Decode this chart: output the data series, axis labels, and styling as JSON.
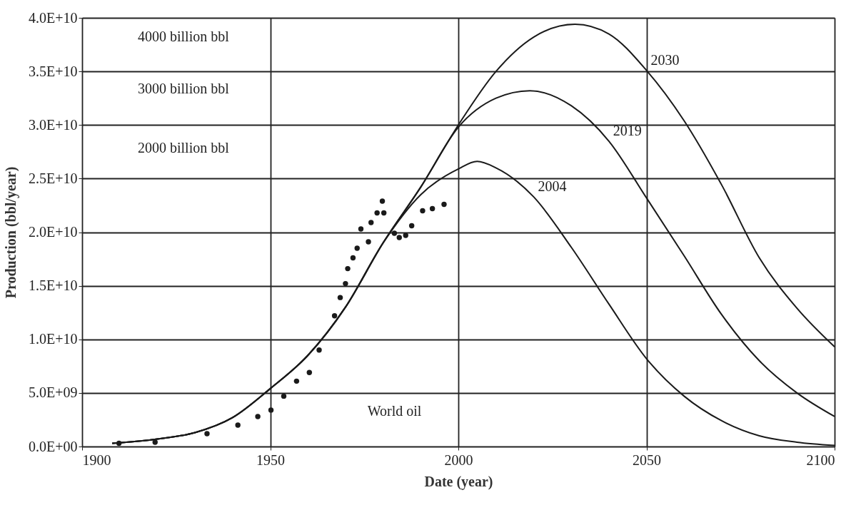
{
  "chart_data": {
    "type": "line",
    "xlabel": "Date (year)",
    "ylabel": "Production (bbl/year)",
    "xlim": [
      1900,
      2100
    ],
    "xticks": [
      1900,
      1950,
      2000,
      2050,
      2100
    ],
    "ylim": [
      0,
      40000000000
    ],
    "yticks": [
      {
        "value": 0,
        "label": "0.0E+00"
      },
      {
        "value": 5000000000,
        "label": "5.0E+09"
      },
      {
        "value": 10000000000,
        "label": "1.0E+10"
      },
      {
        "value": 15000000000,
        "label": "1.5E+10"
      },
      {
        "value": 20000000000,
        "label": "2.0E+10"
      },
      {
        "value": 25000000000,
        "label": "2.5E+10"
      },
      {
        "value": 30000000000,
        "label": "3.0E+10"
      },
      {
        "value": 35000000000,
        "label": "3.5E+10"
      },
      {
        "value": 40000000000,
        "label": "4.0E+10"
      }
    ],
    "grid": true,
    "annotations": [
      "4000 billion bbl",
      "3000 billion bbl",
      "2000 billion bbl",
      "World oil"
    ],
    "series": [
      {
        "name": "2030",
        "color": "#1a1a1a",
        "x": [
          1908,
          1910,
          1920,
          1930,
          1940,
          1950,
          1960,
          1970,
          1980,
          1990,
          2000,
          2010,
          2020,
          2031,
          2040,
          2050,
          2060,
          2070,
          2080,
          2090,
          2100
        ],
        "values": [
          300000000,
          350000000,
          700000000,
          1300000000,
          2700000000,
          5400000000,
          8500000000,
          13000000000,
          19000000000,
          24200000000,
          30000000000,
          35000000000,
          38200000000,
          39400000000,
          38500000000,
          35100000000,
          30400000000,
          24400000000,
          17600000000,
          12900000000,
          9300000000
        ]
      },
      {
        "name": "2019",
        "color": "#1a1a1a",
        "x": [
          1908,
          1910,
          1920,
          1930,
          1940,
          1950,
          1960,
          1970,
          1980,
          1990,
          2000,
          2010,
          2019,
          2030,
          2040,
          2050,
          2060,
          2070,
          2080,
          2090,
          2100
        ],
        "values": [
          300000000,
          350000000,
          700000000,
          1300000000,
          2700000000,
          5400000000,
          8500000000,
          13000000000,
          19000000000,
          24200000000,
          29800000000,
          32500000000,
          33200000000,
          31800000000,
          28500000000,
          23200000000,
          17800000000,
          12300000000,
          8000000000,
          5000000000,
          2800000000
        ]
      },
      {
        "name": "2004",
        "color": "#1a1a1a",
        "x": [
          1908,
          1910,
          1920,
          1930,
          1940,
          1950,
          1960,
          1970,
          1980,
          1990,
          2000,
          2005,
          2010,
          2020,
          2030,
          2040,
          2050,
          2060,
          2070,
          2080,
          2090,
          2100
        ],
        "values": [
          300000000,
          350000000,
          700000000,
          1300000000,
          2700000000,
          5400000000,
          8500000000,
          13000000000,
          19000000000,
          23500000000,
          25900000000,
          26600000000,
          26000000000,
          23300000000,
          18600000000,
          13300000000,
          8200000000,
          4700000000,
          2400000000,
          1000000000,
          400000000,
          100000000
        ]
      },
      {
        "type": "scatter",
        "color": "#1a1a1a",
        "marker": "circle",
        "x": [
          1909.8,
          1919.4,
          1933.2,
          1941.4,
          1946.7,
          1950.2,
          1953.6,
          1957,
          1960.4,
          1963,
          1967.1,
          1968.6,
          1970,
          1970.6,
          1972,
          1973.1,
          1974.1,
          1976.1,
          1976.8,
          1978.4,
          1979.8,
          1980.2,
          1983,
          1984.3,
          1986,
          1987.6,
          1990.5,
          1993.1,
          1996.2
        ],
        "values": [
          300000000,
          400000000,
          1200000000,
          2000000000,
          2800000000,
          3400000000,
          4700000000,
          6100000000,
          6900000000,
          9000000000,
          12200000000,
          13900000000,
          15200000000,
          16600000000,
          17600000000,
          18500000000,
          20300000000,
          19100000000,
          20900000000,
          21800000000,
          22900000000,
          21800000000,
          19900000000,
          19500000000,
          19700000000,
          20600000000,
          22000000000,
          22200000000,
          22600000000
        ]
      }
    ]
  }
}
